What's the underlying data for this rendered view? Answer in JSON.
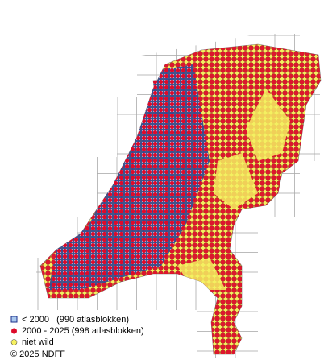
{
  "legend": [
    "< 2000   (990 atlasblokken)",
    "2000 - 2025 (998 atlasblokken)",
    "niet wild"
  ],
  "copyright": "© 2025 NDFF"
}
